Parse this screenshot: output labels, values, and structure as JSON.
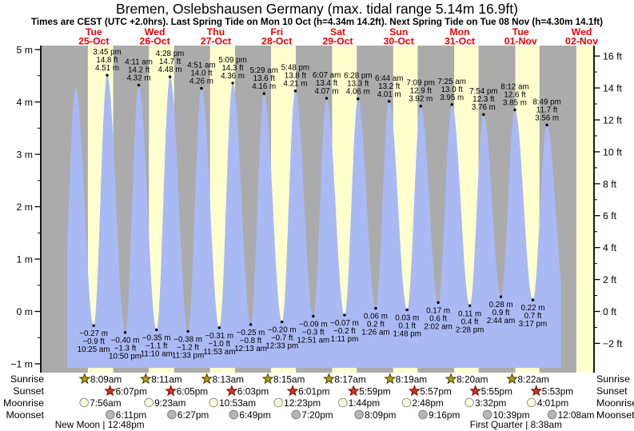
{
  "title": "Bremen, Oslebshausen Germany (max. tidal range 5.14m 16.9ft)",
  "subtitle": "Times are CEST (UTC +2.0hrs). Last Spring Tide on Mon 10 Oct (h=4.34m 14.2ft). Next Spring Tide on Tue 08 Nov (h=4.30m 14.1ft)",
  "colors": {
    "night_band": "#ababab",
    "day_band": "#ffffce",
    "tide_fill": "#a9b9f4",
    "date_label": "#ee0000",
    "axis": "#000000",
    "sunrise_star": "#b1a116",
    "sunrise_star_outline": "#4f4603",
    "sunset_star": "#d4331c",
    "sunset_star_outline": "#7c150a",
    "moonrise_circle": "#ffffd9",
    "moonrise_outline": "#9a9a9a",
    "moonset_circle": "#b6b6b6",
    "moonset_outline": "#878787"
  },
  "days": [
    {
      "weekday": "Tue",
      "date": "25-Oct"
    },
    {
      "weekday": "Wed",
      "date": "26-Oct"
    },
    {
      "weekday": "Thu",
      "date": "27-Oct"
    },
    {
      "weekday": "Fri",
      "date": "28-Oct"
    },
    {
      "weekday": "Sat",
      "date": "29-Oct"
    },
    {
      "weekday": "Sun",
      "date": "30-Oct"
    },
    {
      "weekday": "Mon",
      "date": "31-Oct"
    },
    {
      "weekday": "Tue",
      "date": "01-Nov"
    },
    {
      "weekday": "Wed",
      "date": "02-Nov"
    }
  ],
  "axes": {
    "m_ticks": [
      {
        "v": 5,
        "label": "5 m"
      },
      {
        "v": 4,
        "label": "4 m"
      },
      {
        "v": 3,
        "label": "3 m"
      },
      {
        "v": 2,
        "label": "2 m"
      },
      {
        "v": 1,
        "label": "1 m"
      },
      {
        "v": 0,
        "label": "0 m"
      },
      {
        "v": -1,
        "label": "−1 m"
      }
    ],
    "ft_ticks": [
      {
        "v": 16,
        "label": "16 ft"
      },
      {
        "v": 14,
        "label": "14 ft"
      },
      {
        "v": 12,
        "label": "12 ft"
      },
      {
        "v": 10,
        "label": "10 ft"
      },
      {
        "v": 8,
        "label": "8 ft"
      },
      {
        "v": 6,
        "label": "6 ft"
      },
      {
        "v": 4,
        "label": "4 ft"
      },
      {
        "v": 2,
        "label": "2 ft"
      },
      {
        "v": 0,
        "label": "0 ft"
      },
      {
        "v": -2,
        "label": "−2 ft"
      }
    ]
  },
  "chart_data": {
    "type": "area",
    "title": "Tide height Bremen Oslebshausen, Tue 25-Oct to Wed 02-Nov",
    "x_axis": {
      "note": "t = hours since Tue 25-Oct 00:00",
      "visible_range": [
        -10.4,
        207.4
      ]
    },
    "y_axis": {
      "left_label": "m",
      "left_range": [
        -1,
        5
      ],
      "right_label": "ft",
      "right_range": [
        -2,
        16
      ]
    },
    "grid": false,
    "legend": "none",
    "extremes": [
      {
        "t": 3.35,
        "type": "H",
        "m": 4.27
      },
      {
        "t": 10.42,
        "type": "L",
        "m": -0.27,
        "ft": -0.9,
        "time": "10:25 am"
      },
      {
        "t": 15.75,
        "type": "H",
        "m": 4.51,
        "ft": 14.8,
        "time": "3:45 pm"
      },
      {
        "t": 22.83,
        "type": "L",
        "m": -0.4,
        "ft": -1.3,
        "time": "10:50 pm"
      },
      {
        "t": 28.18,
        "type": "H",
        "m": 4.32,
        "ft": 14.2,
        "time": "4:11 am"
      },
      {
        "t": 35.17,
        "type": "L",
        "m": -0.35,
        "ft": -1.1,
        "time": "11:10 am"
      },
      {
        "t": 40.47,
        "type": "H",
        "m": 4.48,
        "ft": 14.7,
        "time": "4:28 pm"
      },
      {
        "t": 47.55,
        "type": "L",
        "m": -0.38,
        "ft": -1.2,
        "time": "11:33 pm"
      },
      {
        "t": 52.85,
        "type": "H",
        "m": 4.26,
        "ft": 14.0,
        "time": "4:51 am"
      },
      {
        "t": 59.88,
        "type": "L",
        "m": -0.31,
        "ft": -1.0,
        "time": "11:53 am"
      },
      {
        "t": 65.15,
        "type": "H",
        "m": 4.36,
        "ft": 14.3,
        "time": "5:09 pm"
      },
      {
        "t": 72.22,
        "type": "L",
        "m": -0.25,
        "ft": -0.8,
        "time": "12:13 am"
      },
      {
        "t": 77.48,
        "type": "H",
        "m": 4.16,
        "ft": 13.6,
        "time": "5:29 am"
      },
      {
        "t": 84.55,
        "type": "L",
        "m": -0.2,
        "ft": -0.7,
        "time": "12:33 pm"
      },
      {
        "t": 89.8,
        "type": "H",
        "m": 4.21,
        "ft": 13.8,
        "time": "5:48 pm"
      },
      {
        "t": 96.85,
        "type": "L",
        "m": -0.09,
        "ft": -0.3,
        "time": "12:51 am"
      },
      {
        "t": 102.12,
        "type": "H",
        "m": 4.07,
        "ft": 13.4,
        "time": "6:07 am"
      },
      {
        "t": 109.18,
        "type": "L",
        "m": -0.07,
        "ft": -0.2,
        "time": "1:11 pm"
      },
      {
        "t": 114.47,
        "type": "H",
        "m": 4.06,
        "ft": 13.3,
        "time": "6:28 pm"
      },
      {
        "t": 121.43,
        "type": "L",
        "m": 0.06,
        "ft": 0.2,
        "time": "1:26 am"
      },
      {
        "t": 126.73,
        "type": "H",
        "m": 4.01,
        "ft": 13.2,
        "time": "6:44 am"
      },
      {
        "t": 133.8,
        "type": "L",
        "m": 0.03,
        "ft": 0.1,
        "time": "1:48 pm"
      },
      {
        "t": 139.15,
        "type": "H",
        "m": 3.92,
        "ft": 12.9,
        "time": "7:09 pm"
      },
      {
        "t": 146.03,
        "type": "L",
        "m": 0.17,
        "ft": 0.6,
        "time": "2:02 am"
      },
      {
        "t": 151.42,
        "type": "H",
        "m": 3.95,
        "ft": 13.0,
        "time": "7:25 am"
      },
      {
        "t": 158.47,
        "type": "L",
        "m": 0.11,
        "ft": 0.4,
        "time": "2:28 pm"
      },
      {
        "t": 163.9,
        "type": "H",
        "m": 3.76,
        "ft": 12.3,
        "time": "7:54 pm"
      },
      {
        "t": 170.73,
        "type": "L",
        "m": 0.28,
        "ft": 0.9,
        "time": "2:44 am"
      },
      {
        "t": 176.2,
        "type": "H",
        "m": 3.85,
        "ft": 12.6,
        "time": "8:12 am"
      },
      {
        "t": 183.28,
        "type": "L",
        "m": 0.22,
        "ft": 0.7,
        "time": "3:17 pm"
      },
      {
        "t": 188.82,
        "type": "H",
        "m": 3.56,
        "ft": 11.7,
        "time": "8:49 pm"
      }
    ],
    "curve_padding_estimated": [
      {
        "t": -2.1,
        "m": -0.3
      },
      {
        "t": 195.8,
        "m": 0.25
      }
    ],
    "data_t_range": [
      0,
      194.4
    ],
    "final_partial_day_band_t": [
      200.4,
      207.4
    ]
  },
  "astro": {
    "row_labels": [
      "Sunrise",
      "Sunset",
      "Moonrise",
      "Moonset"
    ],
    "rows": [
      {
        "label": "Sunrise",
        "icon": "sunrise-star",
        "entries": [
          {
            "day": 0,
            "time": "8:09am"
          },
          {
            "day": 1,
            "time": "8:11am"
          },
          {
            "day": 2,
            "time": "8:13am"
          },
          {
            "day": 3,
            "time": "8:15am"
          },
          {
            "day": 4,
            "time": "8:17am"
          },
          {
            "day": 5,
            "time": "8:19am"
          },
          {
            "day": 6,
            "time": "8:20am"
          },
          {
            "day": 7,
            "time": "8:22am"
          }
        ]
      },
      {
        "label": "Sunset",
        "icon": "sunset-star",
        "entries": [
          {
            "day": 0,
            "time": "6:07pm"
          },
          {
            "day": 1,
            "time": "6:05pm"
          },
          {
            "day": 2,
            "time": "6:03pm"
          },
          {
            "day": 3,
            "time": "6:01pm"
          },
          {
            "day": 4,
            "time": "5:59pm"
          },
          {
            "day": 5,
            "time": "5:57pm"
          },
          {
            "day": 6,
            "time": "5:55pm"
          },
          {
            "day": 7,
            "time": "5:53pm"
          }
        ]
      },
      {
        "label": "Moonrise",
        "icon": "moonrise-circle",
        "entries": [
          {
            "day": 0,
            "time": "7:56am"
          },
          {
            "day": 1,
            "time": "9:23am"
          },
          {
            "day": 2,
            "time": "10:53am"
          },
          {
            "day": 3,
            "time": "12:23pm"
          },
          {
            "day": 4,
            "time": "1:44pm"
          },
          {
            "day": 5,
            "time": "2:48pm"
          },
          {
            "day": 6,
            "time": "3:32pm"
          },
          {
            "day": 7,
            "time": "4:01pm"
          }
        ]
      },
      {
        "label": "Moonset",
        "icon": "moonset-circle",
        "entries": [
          {
            "day": 0,
            "time": "6:11pm"
          },
          {
            "day": 1,
            "time": "6:27pm"
          },
          {
            "day": 2,
            "time": "6:49pm"
          },
          {
            "day": 3,
            "time": "7:20pm"
          },
          {
            "day": 4,
            "time": "8:09pm"
          },
          {
            "day": 5,
            "time": "9:16pm"
          },
          {
            "day": 6,
            "time": "10:39pm"
          },
          {
            "day": 8,
            "time": "12:08am"
          }
        ]
      }
    ],
    "events": [
      {
        "label": "New Moon",
        "time": "12:48pm",
        "day": 0
      },
      {
        "label": "First Quarter",
        "time": "8:38am",
        "day": 7
      }
    ]
  }
}
